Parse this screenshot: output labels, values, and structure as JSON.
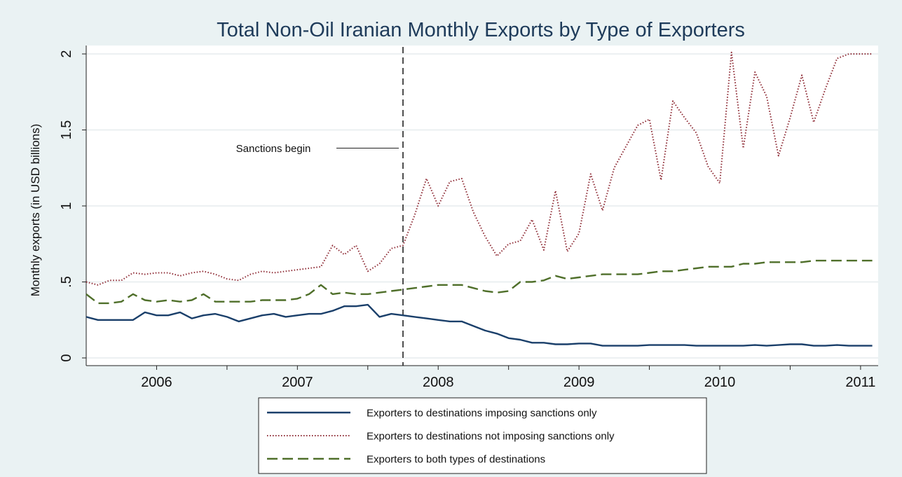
{
  "chart_data": {
    "type": "line",
    "title": "Total Non-Oil Iranian Monthly Exports by Type of Exporters",
    "xlabel": "",
    "ylabel": "Monthly exports (in USD billions)",
    "xlim": [
      2005.75,
      2011.375
    ],
    "ylim": [
      0,
      2
    ],
    "y_ticks": [
      0,
      0.5,
      1,
      1.5,
      2
    ],
    "y_tick_labels": [
      "0",
      ".5",
      "1",
      "1.5",
      "2"
    ],
    "x_tick_labels": [
      {
        "label": "2006",
        "x": 2006.25
      },
      {
        "label": "2007",
        "x": 2007.25
      },
      {
        "label": "2008",
        "x": 2008.25
      },
      {
        "label": "2009",
        "x": 2009.25
      },
      {
        "label": "2010",
        "x": 2010.25
      },
      {
        "label": "2011",
        "x": 2011.25
      }
    ],
    "x_ticks_minor": [
      2006.75,
      2007.75,
      2008.75,
      2009.75,
      2010.75
    ],
    "grid": true,
    "legend_position": "bottom",
    "annotation": {
      "text": "Sanctions begin",
      "x": 2008.0,
      "label_y": 1.38
    },
    "series": [
      {
        "name": "Exporters to destinations imposing sanctions only",
        "color": "#1a3f6a",
        "style": "solid",
        "x": [
          2005.75,
          2005.833,
          2005.917,
          2006.0,
          2006.083,
          2006.167,
          2006.25,
          2006.333,
          2006.417,
          2006.5,
          2006.583,
          2006.667,
          2006.75,
          2006.833,
          2006.917,
          2007.0,
          2007.083,
          2007.167,
          2007.25,
          2007.333,
          2007.417,
          2007.5,
          2007.583,
          2007.667,
          2007.75,
          2007.833,
          2007.917,
          2008.0,
          2008.083,
          2008.167,
          2008.25,
          2008.333,
          2008.417,
          2008.5,
          2008.583,
          2008.667,
          2008.75,
          2008.833,
          2008.917,
          2009.0,
          2009.083,
          2009.167,
          2009.25,
          2009.333,
          2009.417,
          2009.5,
          2009.583,
          2009.667,
          2009.75,
          2009.833,
          2009.917,
          2010.0,
          2010.083,
          2010.167,
          2010.25,
          2010.333,
          2010.417,
          2010.5,
          2010.583,
          2010.667,
          2010.75,
          2010.833,
          2010.917,
          2011.0,
          2011.083,
          2011.167,
          2011.25,
          2011.333
        ],
        "values": [
          0.27,
          0.25,
          0.25,
          0.25,
          0.25,
          0.3,
          0.28,
          0.28,
          0.3,
          0.26,
          0.28,
          0.29,
          0.27,
          0.24,
          0.26,
          0.28,
          0.29,
          0.27,
          0.28,
          0.29,
          0.29,
          0.31,
          0.34,
          0.34,
          0.35,
          0.27,
          0.29,
          0.28,
          0.27,
          0.26,
          0.25,
          0.24,
          0.24,
          0.21,
          0.18,
          0.16,
          0.13,
          0.12,
          0.1,
          0.1,
          0.09,
          0.09,
          0.095,
          0.095,
          0.08,
          0.08,
          0.08,
          0.08,
          0.085,
          0.085,
          0.085,
          0.085,
          0.08,
          0.08,
          0.08,
          0.08,
          0.08,
          0.085,
          0.08,
          0.085,
          0.09,
          0.09,
          0.08,
          0.08,
          0.085,
          0.08,
          0.08,
          0.08
        ]
      },
      {
        "name": "Exporters to destinations not imposing sanctions only",
        "color": "#8e2b35",
        "style": "dotted",
        "x": [
          2005.75,
          2005.833,
          2005.917,
          2006.0,
          2006.083,
          2006.167,
          2006.25,
          2006.333,
          2006.417,
          2006.5,
          2006.583,
          2006.667,
          2006.75,
          2006.833,
          2006.917,
          2007.0,
          2007.083,
          2007.167,
          2007.25,
          2007.333,
          2007.417,
          2007.5,
          2007.583,
          2007.667,
          2007.75,
          2007.833,
          2007.917,
          2008.0,
          2008.083,
          2008.167,
          2008.25,
          2008.333,
          2008.417,
          2008.5,
          2008.583,
          2008.667,
          2008.75,
          2008.833,
          2008.917,
          2009.0,
          2009.083,
          2009.167,
          2009.25,
          2009.333,
          2009.417,
          2009.5,
          2009.583,
          2009.667,
          2009.75,
          2009.833,
          2009.917,
          2010.0,
          2010.083,
          2010.167,
          2010.25,
          2010.333,
          2010.417,
          2010.5,
          2010.583,
          2010.667,
          2010.75,
          2010.833,
          2010.917,
          2011.0,
          2011.083,
          2011.167,
          2011.25,
          2011.333
        ],
        "values": [
          0.5,
          0.48,
          0.51,
          0.51,
          0.56,
          0.55,
          0.56,
          0.56,
          0.54,
          0.56,
          0.57,
          0.55,
          0.52,
          0.51,
          0.55,
          0.57,
          0.56,
          0.57,
          0.58,
          0.59,
          0.6,
          0.74,
          0.68,
          0.74,
          0.57,
          0.62,
          0.72,
          0.74,
          0.94,
          1.18,
          1.0,
          1.16,
          1.18,
          0.96,
          0.8,
          0.67,
          0.75,
          0.77,
          0.91,
          0.71,
          1.1,
          0.7,
          0.82,
          1.21,
          0.97,
          1.25,
          1.39,
          1.53,
          1.57,
          1.17,
          1.69,
          1.58,
          1.48,
          1.26,
          1.15,
          2.01,
          1.38,
          1.88,
          1.72,
          1.33,
          1.58,
          1.86,
          1.55,
          1.77,
          1.97,
          2.0,
          2.0,
          2.0
        ]
      },
      {
        "name": "Exporters to both types of destinations",
        "color": "#4f6f2a",
        "style": "dashed",
        "x": [
          2005.75,
          2005.833,
          2005.917,
          2006.0,
          2006.083,
          2006.167,
          2006.25,
          2006.333,
          2006.417,
          2006.5,
          2006.583,
          2006.667,
          2006.75,
          2006.833,
          2006.917,
          2007.0,
          2007.083,
          2007.167,
          2007.25,
          2007.333,
          2007.417,
          2007.5,
          2007.583,
          2007.667,
          2007.75,
          2007.833,
          2007.917,
          2008.0,
          2008.083,
          2008.167,
          2008.25,
          2008.333,
          2008.417,
          2008.5,
          2008.583,
          2008.667,
          2008.75,
          2008.833,
          2008.917,
          2009.0,
          2009.083,
          2009.167,
          2009.25,
          2009.333,
          2009.417,
          2009.5,
          2009.583,
          2009.667,
          2009.75,
          2009.833,
          2009.917,
          2010.0,
          2010.083,
          2010.167,
          2010.25,
          2010.333,
          2010.417,
          2010.5,
          2010.583,
          2010.667,
          2010.75,
          2010.833,
          2010.917,
          2011.0,
          2011.083,
          2011.167,
          2011.25,
          2011.333
        ],
        "values": [
          0.42,
          0.36,
          0.36,
          0.37,
          0.42,
          0.38,
          0.37,
          0.38,
          0.37,
          0.38,
          0.42,
          0.37,
          0.37,
          0.37,
          0.37,
          0.38,
          0.38,
          0.38,
          0.39,
          0.42,
          0.48,
          0.42,
          0.43,
          0.42,
          0.42,
          0.43,
          0.44,
          0.45,
          0.46,
          0.47,
          0.48,
          0.48,
          0.48,
          0.46,
          0.44,
          0.43,
          0.44,
          0.5,
          0.5,
          0.51,
          0.54,
          0.52,
          0.53,
          0.54,
          0.55,
          0.55,
          0.55,
          0.55,
          0.56,
          0.57,
          0.57,
          0.58,
          0.59,
          0.6,
          0.6,
          0.6,
          0.62,
          0.62,
          0.63,
          0.63,
          0.63,
          0.63,
          0.64,
          0.64,
          0.64,
          0.64,
          0.64,
          0.64
        ]
      }
    ]
  }
}
